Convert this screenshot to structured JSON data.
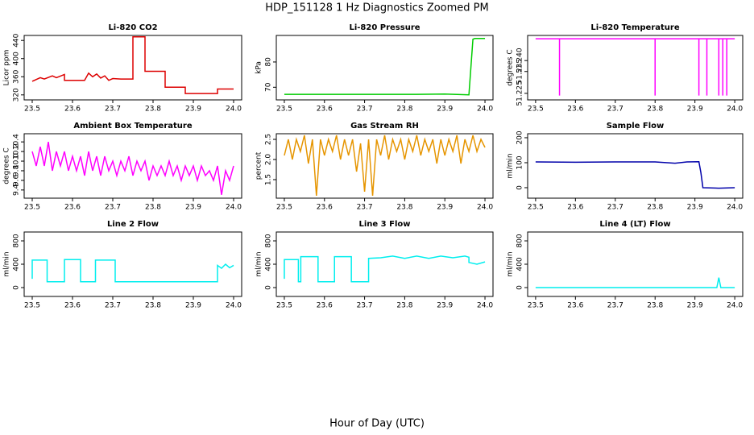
{
  "title": "HDP_151128  1 Hz Diagnostics Zoomed PM",
  "x_label": "Hour of Day (UTC)",
  "chart_data": [
    {
      "type": "line",
      "title": "Li-820 CO2",
      "y_label": "Licor ppm",
      "color": "#dd0000",
      "x": [
        23.5,
        23.52,
        23.53,
        23.55,
        23.56,
        23.58,
        23.58,
        23.63,
        23.64,
        23.65,
        23.66,
        23.67,
        23.68,
        23.69,
        23.7,
        23.72,
        23.75,
        23.75,
        23.78,
        23.78,
        23.83,
        23.83,
        23.88,
        23.88,
        23.96,
        23.96,
        23.96,
        24.0
      ],
      "values": [
        350,
        358,
        355,
        362,
        358,
        365,
        352,
        352,
        368,
        360,
        366,
        357,
        362,
        352,
        356,
        355,
        355,
        448,
        448,
        372,
        372,
        337,
        337,
        323,
        323,
        330,
        333,
        333
      ],
      "xlim": [
        23.48,
        24.02
      ],
      "xticks": [
        23.5,
        23.6,
        23.7,
        23.8,
        23.9,
        {
          "value": 24,
          "label": "24.0"
        }
      ],
      "ylim": [
        309,
        451
      ],
      "yticks": [
        320,
        360,
        400,
        440
      ]
    },
    {
      "type": "line",
      "title": "Li-820 Pressure",
      "y_label": "kPa",
      "color": "#00cc00",
      "x": [
        23.5,
        23.83,
        23.9,
        23.96,
        23.965,
        23.97,
        23.975,
        24.0
      ],
      "values": [
        67.2,
        67.2,
        67.3,
        67.0,
        78,
        89,
        89.3,
        89.3
      ],
      "xlim": [
        23.48,
        24.02
      ],
      "xticks": [
        23.5,
        23.6,
        23.7,
        23.8,
        23.9,
        {
          "value": 24,
          "label": "24.0"
        }
      ],
      "ylim": [
        65,
        90.5
      ],
      "yticks": [
        70,
        80
      ]
    },
    {
      "type": "line",
      "title": "Li-820 Temperature",
      "y_label": "degrees C",
      "color": "#ff00ff",
      "x": [
        23.5,
        23.56,
        23.56,
        23.56,
        23.8,
        23.8,
        23.8,
        23.91,
        23.91,
        23.91,
        23.93,
        23.93,
        23.93,
        23.96,
        23.96,
        23.96,
        23.97,
        23.97,
        23.97,
        23.98,
        23.98,
        23.98,
        24.0
      ],
      "values": [
        51.25,
        51.25,
        51.224,
        51.25,
        51.25,
        51.224,
        51.25,
        51.25,
        51.224,
        51.25,
        51.25,
        51.224,
        51.25,
        51.25,
        51.224,
        51.25,
        51.25,
        51.224,
        51.25,
        51.25,
        51.224,
        51.25,
        51.25
      ],
      "xlim": [
        23.48,
        24.02
      ],
      "xticks": [
        23.5,
        23.6,
        23.7,
        23.8,
        23.9,
        {
          "value": 24,
          "label": "24.0"
        }
      ],
      "ylim": [
        51.222,
        51.2515
      ],
      "yticks": [
        51.225,
        51.235,
        {
          "value": 51.24,
          "label": "51.240"
        }
      ]
    },
    {
      "type": "line",
      "title": "Ambient Box Temperature",
      "y_label": "degrees C",
      "color": "#ff00ff",
      "x": [
        23.5,
        23.51,
        23.52,
        23.53,
        23.54,
        23.55,
        23.56,
        23.57,
        23.58,
        23.59,
        23.6,
        23.61,
        23.62,
        23.63,
        23.64,
        23.65,
        23.66,
        23.67,
        23.68,
        23.69,
        23.7,
        23.71,
        23.72,
        23.73,
        23.74,
        23.75,
        23.76,
        23.77,
        23.78,
        23.79,
        23.8,
        23.81,
        23.82,
        23.83,
        23.84,
        23.85,
        23.86,
        23.87,
        23.88,
        23.89,
        23.9,
        23.91,
        23.92,
        23.93,
        23.94,
        23.95,
        23.96,
        23.97,
        23.98,
        23.99,
        24.0
      ],
      "values": [
        10.2,
        9.9,
        10.3,
        9.9,
        10.4,
        9.8,
        10.2,
        9.9,
        10.2,
        9.8,
        10.1,
        9.8,
        10.1,
        9.7,
        10.2,
        9.8,
        10.1,
        9.7,
        10.1,
        9.8,
        10.0,
        9.7,
        10.0,
        9.8,
        10.1,
        9.7,
        10.0,
        9.8,
        10.0,
        9.6,
        9.9,
        9.7,
        9.9,
        9.7,
        10.0,
        9.7,
        9.9,
        9.6,
        9.9,
        9.7,
        9.9,
        9.6,
        9.9,
        9.7,
        9.8,
        9.6,
        9.9,
        9.3,
        9.8,
        9.6,
        9.9
      ],
      "xlim": [
        23.48,
        24.02
      ],
      "xticks": [
        23.5,
        23.6,
        23.7,
        23.8,
        23.9,
        {
          "value": 24,
          "label": "24.0"
        }
      ],
      "ylim": [
        9.23,
        10.57
      ],
      "yticks": [
        9.4,
        9.6,
        9.8,
        {
          "value": 10,
          "label": "10.0"
        },
        10.2,
        10.4
      ]
    },
    {
      "type": "line",
      "title": "Gas Stream RH",
      "y_label": "percent",
      "color": "#e69500",
      "x": [
        23.5,
        23.51,
        23.52,
        23.53,
        23.54,
        23.55,
        23.56,
        23.57,
        23.58,
        23.59,
        23.6,
        23.61,
        23.62,
        23.63,
        23.64,
        23.65,
        23.66,
        23.67,
        23.68,
        23.69,
        23.7,
        23.71,
        23.72,
        23.73,
        23.74,
        23.75,
        23.76,
        23.77,
        23.78,
        23.79,
        23.8,
        23.81,
        23.82,
        23.83,
        23.84,
        23.85,
        23.86,
        23.87,
        23.88,
        23.89,
        23.9,
        23.91,
        23.92,
        23.93,
        23.94,
        23.95,
        23.96,
        23.97,
        23.98,
        23.99,
        24.0
      ],
      "values": [
        2.1,
        2.5,
        2.0,
        2.5,
        2.2,
        2.6,
        1.9,
        2.5,
        1.1,
        2.5,
        2.1,
        2.5,
        2.2,
        2.6,
        2.0,
        2.5,
        2.1,
        2.5,
        1.7,
        2.4,
        1.2,
        2.5,
        1.1,
        2.5,
        2.1,
        2.6,
        2.0,
        2.5,
        2.2,
        2.5,
        2.0,
        2.5,
        2.2,
        2.6,
        2.1,
        2.5,
        2.2,
        2.5,
        1.9,
        2.5,
        2.1,
        2.5,
        2.2,
        2.6,
        1.9,
        2.5,
        2.2,
        2.6,
        2.2,
        2.5,
        2.3
      ],
      "xlim": [
        23.48,
        24.02
      ],
      "xticks": [
        23.5,
        23.6,
        23.7,
        23.8,
        23.9,
        {
          "value": 24,
          "label": "24.0"
        }
      ],
      "ylim": [
        1.04,
        2.64
      ],
      "yticks": [
        1.5,
        {
          "value": 2,
          "label": "2.0"
        },
        2.5
      ]
    },
    {
      "type": "line",
      "title": "Sample Flow",
      "y_label": "ml/min",
      "color": "#0000aa",
      "x": [
        23.5,
        23.6,
        23.7,
        23.8,
        23.85,
        23.88,
        23.91,
        23.915,
        23.92,
        23.96,
        24.0
      ],
      "values": [
        103,
        102,
        103,
        103,
        98,
        103,
        104,
        60,
        0,
        -2,
        0
      ],
      "xlim": [
        23.48,
        24.02
      ],
      "xticks": [
        23.5,
        23.6,
        23.7,
        23.8,
        23.9,
        {
          "value": 24,
          "label": "24.0"
        }
      ],
      "ylim": [
        -42,
        216
      ],
      "yticks": [
        0,
        100,
        200
      ]
    },
    {
      "type": "line",
      "title": "Line 2 Flow",
      "y_label": "ml/min",
      "color": "#00eeee",
      "x": [
        23.5,
        23.5,
        23.537,
        23.537,
        23.58,
        23.58,
        23.62,
        23.62,
        23.657,
        23.657,
        23.706,
        23.706,
        23.96,
        23.96,
        23.97,
        23.98,
        23.99,
        24.0
      ],
      "values": [
        150,
        470,
        470,
        100,
        100,
        480,
        480,
        100,
        100,
        470,
        470,
        100,
        100,
        380,
        330,
        400,
        340,
        380
      ],
      "xlim": [
        23.48,
        24.02
      ],
      "xticks": [
        23.5,
        23.6,
        23.7,
        23.8,
        23.9,
        {
          "value": 24,
          "label": "24.0"
        }
      ],
      "ylim": [
        -152,
        952
      ],
      "yticks": [
        0,
        400,
        800
      ]
    },
    {
      "type": "line",
      "title": "Line 3 Flow",
      "y_label": "ml/min",
      "color": "#00eeee",
      "x": [
        23.5,
        23.5,
        23.535,
        23.535,
        23.541,
        23.541,
        23.584,
        23.584,
        23.625,
        23.625,
        23.667,
        23.667,
        23.71,
        23.71,
        23.74,
        23.77,
        23.8,
        23.83,
        23.86,
        23.89,
        23.92,
        23.95,
        23.96,
        23.96,
        23.98,
        24.0
      ],
      "values": [
        150,
        480,
        480,
        100,
        100,
        530,
        530,
        100,
        100,
        530,
        530,
        100,
        100,
        500,
        510,
        540,
        500,
        540,
        500,
        540,
        510,
        540,
        520,
        430,
        400,
        440
      ],
      "xlim": [
        23.48,
        24.02
      ],
      "xticks": [
        23.5,
        23.6,
        23.7,
        23.8,
        23.9,
        {
          "value": 24,
          "label": "24.0"
        }
      ],
      "ylim": [
        -152,
        952
      ],
      "yticks": [
        0,
        400,
        800
      ]
    },
    {
      "type": "line",
      "title": "Line 4 (LT) Flow",
      "y_label": "ml/min",
      "color": "#00eeee",
      "x": [
        23.5,
        23.7,
        23.9,
        23.955,
        23.96,
        23.965,
        24.0
      ],
      "values": [
        0,
        0,
        0,
        0,
        170,
        0,
        0
      ],
      "xlim": [
        23.48,
        24.02
      ],
      "xticks": [
        23.5,
        23.6,
        23.7,
        23.8,
        23.9,
        {
          "value": 24,
          "label": "24.0"
        }
      ],
      "ylim": [
        -152,
        952
      ],
      "yticks": [
        0,
        400,
        800
      ]
    }
  ]
}
